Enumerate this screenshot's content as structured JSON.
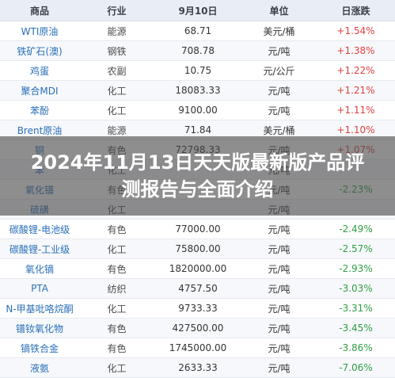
{
  "header": {
    "col1": "商品",
    "col2": "行业",
    "col3": "9月10日",
    "col4": "单位",
    "col5": "日涨跌"
  },
  "rows": [
    {
      "name": "WTI原油",
      "industry": "能源",
      "price": "68.71",
      "unit": "美元/桶",
      "change": "+1.54%"
    },
    {
      "name": "铁矿石(澳)",
      "industry": "钢铁",
      "price": "708.78",
      "unit": "元/吨",
      "change": "+1.38%"
    },
    {
      "name": "鸡蛋",
      "industry": "农副",
      "price": "10.75",
      "unit": "元/公斤",
      "change": "+1.22%"
    },
    {
      "name": "聚合MDI",
      "industry": "化工",
      "price": "18083.33",
      "unit": "元/吨",
      "change": "+1.21%"
    },
    {
      "name": "苯酚",
      "industry": "化工",
      "price": "9100.00",
      "unit": "元/吨",
      "change": "+1.11%"
    },
    {
      "name": "Brent原油",
      "industry": "能源",
      "price": "71.84",
      "unit": "美元/桶",
      "change": "+1.10%"
    },
    {
      "name": "铜",
      "industry": "有色",
      "price": "72798.33",
      "unit": "元/吨",
      "change": "+1.07%"
    },
    {
      "name": "苯",
      "industry": "化工",
      "price": "",
      "unit": "元/吨",
      "change": ""
    },
    {
      "name": "氧化镨",
      "industry": "有色",
      "price": "",
      "unit": "元/吨",
      "change": "-2.23%"
    },
    {
      "name": "硫磺",
      "industry": "化工",
      "price": "",
      "unit": "元/吨",
      "change": ""
    },
    {
      "name": "碳酸锂-电池级",
      "industry": "有色",
      "price": "77000.00",
      "unit": "元/吨",
      "change": "-2.49%"
    },
    {
      "name": "碳酸锂-工业级",
      "industry": "化工",
      "price": "75800.00",
      "unit": "元/吨",
      "change": "-2.57%"
    },
    {
      "name": "氧化镝",
      "industry": "有色",
      "price": "1820000.00",
      "unit": "元/吨",
      "change": "-2.93%"
    },
    {
      "name": "PTA",
      "industry": "纺织",
      "price": "4757.50",
      "unit": "元/吨",
      "change": "-3.03%"
    },
    {
      "name": "N-甲基吡咯烷酮",
      "industry": "化工",
      "price": "9733.33",
      "unit": "元/吨",
      "change": "-3.31%"
    },
    {
      "name": "镨钕氧化物",
      "industry": "有色",
      "price": "427500.00",
      "unit": "元/吨",
      "change": "-3.45%"
    },
    {
      "name": "镝铁合金",
      "industry": "有色",
      "price": "1745000.00",
      "unit": "元/吨",
      "change": "-3.86%"
    },
    {
      "name": "液氨",
      "industry": "化工",
      "price": "2633.33",
      "unit": "元/吨",
      "change": "-7.06%"
    }
  ],
  "banner": {
    "title": "2024年11月13日天天版最新版产品评测报告与全面介绍"
  },
  "colors": {
    "up": "#e0403f",
    "down": "#2f9e44",
    "name": "#2a6fb8",
    "header_bg": "#e9eef6"
  }
}
